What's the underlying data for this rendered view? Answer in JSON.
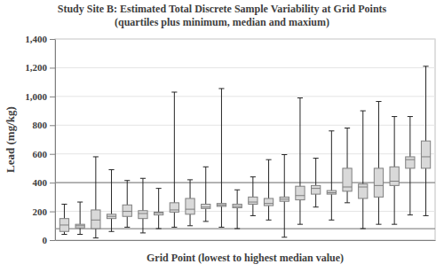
{
  "chart_data": {
    "type": "box",
    "title": "Study Site B: Estimated Total Discrete Sample Variability at Grid Points",
    "subtitle": "(quartiles plus minimum, median and maxium)",
    "x_label": "Grid Point (lowest to highest median value)",
    "y_label": "Lead (mg/kg)",
    "categories": [
      null,
      null,
      null,
      null,
      null,
      null,
      null,
      null,
      null,
      null,
      null,
      null,
      null,
      null,
      null,
      null,
      null,
      null,
      null,
      null,
      null,
      null,
      null,
      null
    ],
    "min": [
      40,
      40,
      15,
      60,
      90,
      50,
      80,
      90,
      100,
      130,
      90,
      80,
      170,
      140,
      20,
      110,
      230,
      140,
      260,
      80,
      110,
      110,
      175,
      170
    ],
    "q1": [
      60,
      85,
      80,
      150,
      165,
      150,
      175,
      195,
      180,
      220,
      235,
      225,
      250,
      240,
      270,
      280,
      320,
      320,
      340,
      290,
      300,
      380,
      500,
      500
    ],
    "median": [
      105,
      100,
      140,
      165,
      200,
      185,
      190,
      210,
      215,
      230,
      245,
      235,
      265,
      255,
      285,
      310,
      360,
      330,
      370,
      370,
      380,
      410,
      560,
      580
    ],
    "q3": [
      150,
      110,
      210,
      180,
      245,
      205,
      195,
      260,
      290,
      250,
      255,
      250,
      300,
      290,
      300,
      375,
      380,
      345,
      500,
      390,
      500,
      510,
      580,
      690
    ],
    "max": [
      250,
      265,
      580,
      490,
      415,
      430,
      360,
      1030,
      420,
      510,
      1055,
      350,
      440,
      560,
      595,
      990,
      570,
      760,
      780,
      900,
      965,
      860,
      860,
      1210
    ],
    "color": "#d9d9d9",
    "ylim": [
      0,
      1400
    ],
    "yticks": [
      0,
      200,
      400,
      600,
      800,
      {
        "value": 1000,
        "label": "1,000"
      },
      {
        "value": 1200,
        "label": "1,200"
      },
      {
        "value": 1400,
        "label": "1,400"
      }
    ],
    "reference_lines": [
      400,
      80
    ],
    "grid": true,
    "tick_labels": "y"
  }
}
